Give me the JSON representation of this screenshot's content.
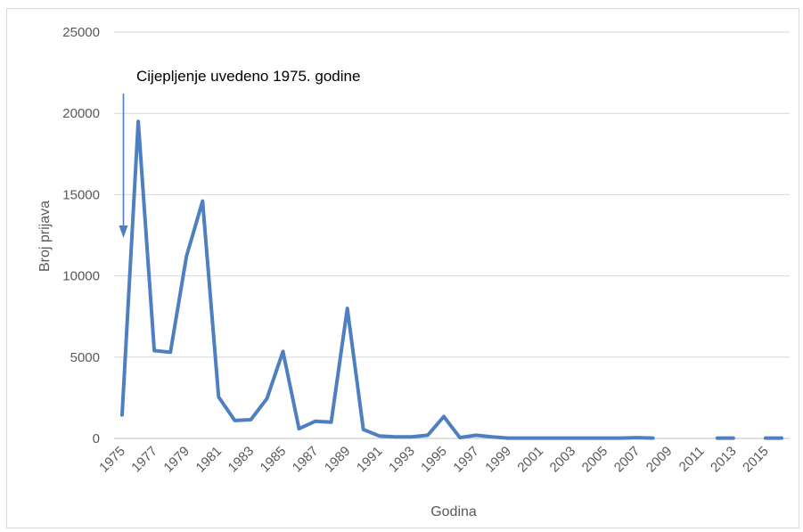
{
  "chart_data": {
    "type": "line",
    "xlabel": "Godina",
    "ylabel": "Broj prijava",
    "ylim": [
      0,
      25000
    ],
    "yticks": [
      0,
      5000,
      10000,
      15000,
      20000,
      25000
    ],
    "grid": true,
    "legend": "none",
    "annotation": "Cijepljenje uvedeno 1975. godine",
    "line_color": "#4e7fc1",
    "x_tick_labels": [
      "1975",
      "1977",
      "1979",
      "1981",
      "1983",
      "1985",
      "1987",
      "1989",
      "1991",
      "1993",
      "1995",
      "1997",
      "1999",
      "2001",
      "2003",
      "2005",
      "2007",
      "2009",
      "2011",
      "2013",
      "2015"
    ],
    "x": [
      1975,
      1976,
      1977,
      1978,
      1979,
      1980,
      1981,
      1982,
      1983,
      1984,
      1985,
      1986,
      1987,
      1988,
      1989,
      1990,
      1991,
      1992,
      1993,
      1994,
      1995,
      1996,
      1997,
      1998,
      1999,
      2000,
      2001,
      2002,
      2003,
      2004,
      2005,
      2006,
      2007,
      2008,
      2009,
      2010,
      2011,
      2012,
      2013,
      2014,
      2015,
      2016
    ],
    "values": [
      1450,
      19500,
      5400,
      5300,
      11200,
      14600,
      2550,
      1100,
      1150,
      2450,
      5350,
      600,
      1050,
      1000,
      8000,
      550,
      150,
      100,
      100,
      200,
      1350,
      50,
      200,
      100,
      20,
      20,
      20,
      20,
      20,
      20,
      20,
      20,
      50,
      20,
      null,
      null,
      null,
      20,
      20,
      null,
      20,
      20
    ]
  }
}
